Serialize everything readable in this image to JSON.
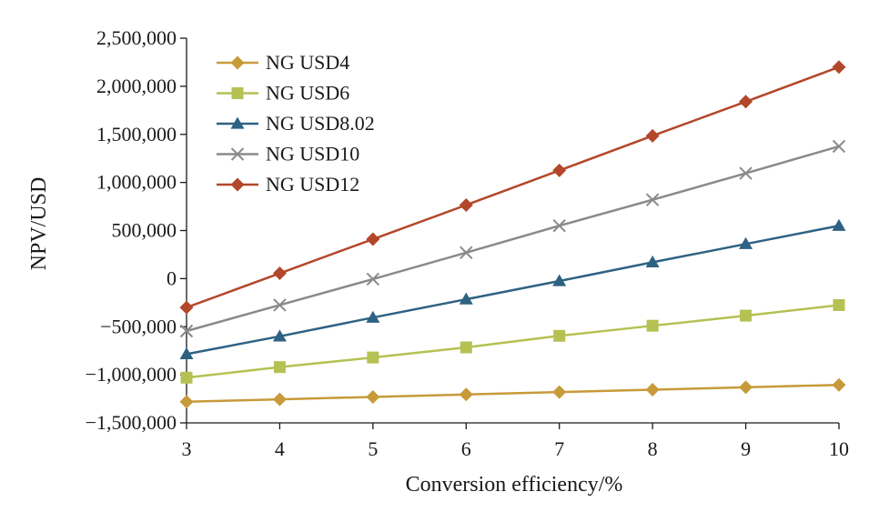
{
  "chart_data": {
    "type": "line",
    "xlabel": "Conversion efficiency/%",
    "ylabel": "NPV/USD",
    "x": [
      3,
      4,
      5,
      6,
      7,
      8,
      9,
      10
    ],
    "xlim": [
      3,
      10
    ],
    "ylim": [
      -1500000,
      2500000
    ],
    "x_ticks": [
      "3",
      "4",
      "5",
      "6",
      "7",
      "8",
      "9",
      "10"
    ],
    "y_ticks": [
      {
        "value": 2500000,
        "label": "2,500,000"
      },
      {
        "value": 2000000,
        "label": "2,000,000"
      },
      {
        "value": 1500000,
        "label": "1,500,000"
      },
      {
        "value": 1000000,
        "label": "1,000,000"
      },
      {
        "value": 500000,
        "label": "500,000"
      },
      {
        "value": 0,
        "label": "0"
      },
      {
        "value": -500000,
        "label": "−500,000"
      },
      {
        "value": -1000000,
        "label": "−1,000,000"
      },
      {
        "value": -1500000,
        "label": "−1,500,000"
      }
    ],
    "grid": false,
    "legend_position": "top-left",
    "series": [
      {
        "name": "NG USD4",
        "color": "#c79a3a",
        "marker": "diamond",
        "values": [
          -1280000,
          -1255000,
          -1230000,
          -1205000,
          -1180000,
          -1155000,
          -1130000,
          -1105000
        ]
      },
      {
        "name": "NG USD6",
        "color": "#b5c152",
        "marker": "square",
        "values": [
          -1030000,
          -920000,
          -820000,
          -715000,
          -595000,
          -490000,
          -385000,
          -275000
        ]
      },
      {
        "name": "NG USD8.02",
        "color": "#2e6283",
        "marker": "triangle",
        "values": [
          -785000,
          -600000,
          -405000,
          -215000,
          -25000,
          170000,
          360000,
          550000
        ]
      },
      {
        "name": "NG USD10",
        "color": "#8a8a8a",
        "marker": "x",
        "values": [
          -545000,
          -275000,
          -5000,
          270000,
          550000,
          820000,
          1095000,
          1375000
        ]
      },
      {
        "name": "NG USD12",
        "color": "#b3472a",
        "marker": "diamond",
        "values": [
          -300000,
          55000,
          410000,
          765000,
          1125000,
          1485000,
          1840000,
          2200000
        ]
      }
    ]
  }
}
